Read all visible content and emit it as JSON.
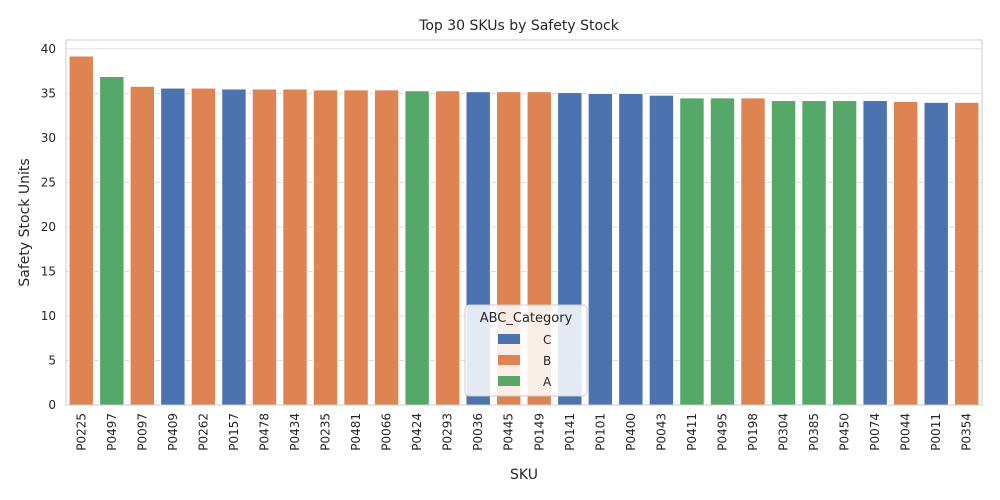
{
  "chart_data": {
    "type": "bar",
    "title": "Top 30 SKUs by Safety Stock",
    "xlabel": "SKU",
    "ylabel": "Safety Stock Units",
    "ylim": [
      0,
      41
    ],
    "yticks": [
      0,
      5,
      10,
      15,
      20,
      25,
      30,
      35,
      40
    ],
    "grid": "horizontal",
    "legend_placement": "bottom-center",
    "legend_title": "ABC_Category",
    "legend_entries": [
      "C",
      "B",
      "A"
    ],
    "colors": {
      "C": "#4c72b0",
      "B": "#dd8452",
      "A": "#55a868"
    },
    "categories": [
      "P0225",
      "P0497",
      "P0097",
      "P0409",
      "P0262",
      "P0157",
      "P0478",
      "P0434",
      "P0235",
      "P0481",
      "P0066",
      "P0424",
      "P0293",
      "P0036",
      "P0445",
      "P0149",
      "P0141",
      "P0101",
      "P0400",
      "P0043",
      "P0411",
      "P0495",
      "P0198",
      "P0304",
      "P0385",
      "P0450",
      "P0074",
      "P0044",
      "P0011",
      "P0354"
    ],
    "values": [
      39.2,
      36.9,
      35.8,
      35.6,
      35.6,
      35.5,
      35.5,
      35.5,
      35.4,
      35.4,
      35.4,
      35.3,
      35.3,
      35.2,
      35.2,
      35.2,
      35.1,
      35.0,
      35.0,
      34.8,
      34.5,
      34.5,
      34.5,
      34.2,
      34.2,
      34.2,
      34.2,
      34.1,
      34.0,
      34.0
    ],
    "abc_category": [
      "B",
      "A",
      "B",
      "C",
      "B",
      "C",
      "B",
      "B",
      "B",
      "B",
      "B",
      "A",
      "B",
      "C",
      "B",
      "B",
      "C",
      "C",
      "C",
      "C",
      "A",
      "A",
      "B",
      "A",
      "A",
      "A",
      "C",
      "B",
      "C",
      "B"
    ]
  }
}
